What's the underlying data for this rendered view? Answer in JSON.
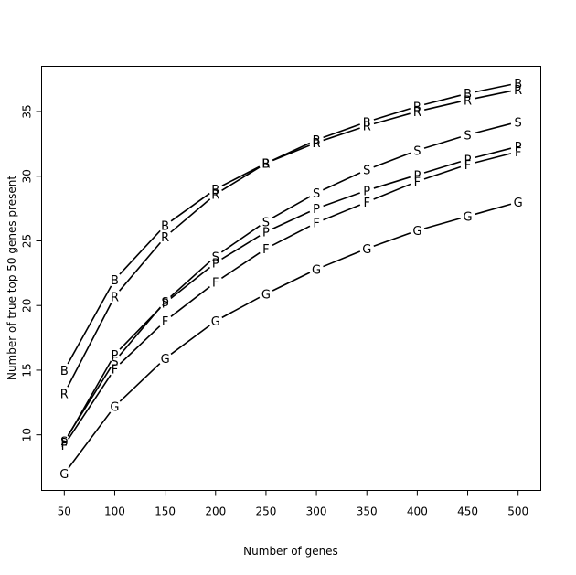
{
  "chart_data": {
    "type": "line",
    "xlabel": "Number of genes",
    "ylabel": "Number of true top 50 genes present",
    "x": [
      50,
      100,
      150,
      200,
      250,
      300,
      350,
      400,
      450,
      500
    ],
    "xticks": [
      50,
      100,
      150,
      200,
      250,
      300,
      350,
      400,
      450,
      500
    ],
    "yticks": [
      10,
      15,
      20,
      25,
      30,
      35
    ],
    "xlim": [
      27.5,
      522.5
    ],
    "ylim": [
      5.7,
      38.5
    ],
    "grid": false,
    "series": [
      {
        "name": "B",
        "values": [
          15.0,
          22.0,
          26.2,
          29.0,
          31.0,
          32.8,
          34.2,
          35.4,
          36.4,
          37.2
        ]
      },
      {
        "name": "R",
        "values": [
          13.2,
          20.7,
          25.3,
          28.6,
          31.0,
          32.6,
          33.9,
          35.0,
          35.9,
          36.7
        ]
      },
      {
        "name": "S",
        "values": [
          9.5,
          15.7,
          20.3,
          23.8,
          26.5,
          28.7,
          30.5,
          32.0,
          33.2,
          34.2
        ]
      },
      {
        "name": "P",
        "values": [
          9.4,
          16.2,
          20.2,
          23.3,
          25.7,
          27.5,
          28.9,
          30.1,
          31.3,
          32.3
        ]
      },
      {
        "name": "F",
        "values": [
          9.2,
          15.1,
          18.8,
          21.8,
          24.4,
          26.4,
          28.0,
          29.6,
          30.9,
          31.9
        ]
      },
      {
        "name": "G",
        "values": [
          7.0,
          12.2,
          15.9,
          18.8,
          20.9,
          22.8,
          24.4,
          25.8,
          26.9,
          28.0
        ]
      }
    ]
  }
}
